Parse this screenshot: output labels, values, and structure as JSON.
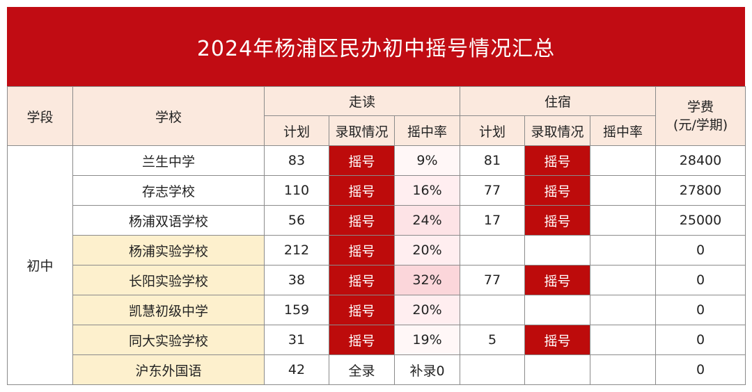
{
  "title": "2024年杨浦区民办初中摇号情况汇总",
  "colors": {
    "header_red": "#c10c13",
    "lottery_cell": "#bd0b0b",
    "header_bg": "#fbe9de",
    "highlight_school": "#fdf0cd"
  },
  "headers": {
    "stage": "学段",
    "school": "学校",
    "walk": "走读",
    "board": "住宿",
    "fee_line1": "学费",
    "fee_line2": "(元/学期)",
    "plan": "计划",
    "admission": "录取情况",
    "rate": "摇中率"
  },
  "stage_label": "初中",
  "rows": [
    {
      "school": "兰生中学",
      "walk_plan": "83",
      "walk_admission": "摇号",
      "walk_rate": "9%",
      "board_plan": "81",
      "board_admission": "摇号",
      "board_rate": "",
      "fee": "28400"
    },
    {
      "school": "存志学校",
      "walk_plan": "110",
      "walk_admission": "摇号",
      "walk_rate": "16%",
      "board_plan": "77",
      "board_admission": "摇号",
      "board_rate": "",
      "fee": "27800"
    },
    {
      "school": "杨浦双语学校",
      "walk_plan": "56",
      "walk_admission": "摇号",
      "walk_rate": "24%",
      "board_plan": "17",
      "board_admission": "摇号",
      "board_rate": "",
      "fee": "25000"
    },
    {
      "school": "杨浦实验学校",
      "walk_plan": "212",
      "walk_admission": "摇号",
      "walk_rate": "20%",
      "board_plan": "",
      "board_admission": "",
      "board_rate": "",
      "fee": "0"
    },
    {
      "school": "长阳实验学校",
      "walk_plan": "38",
      "walk_admission": "摇号",
      "walk_rate": "32%",
      "board_plan": "77",
      "board_admission": "摇号",
      "board_rate": "",
      "fee": "0"
    },
    {
      "school": "凯慧初级中学",
      "walk_plan": "159",
      "walk_admission": "摇号",
      "walk_rate": "20%",
      "board_plan": "",
      "board_admission": "",
      "board_rate": "",
      "fee": "0"
    },
    {
      "school": "同大实验学校",
      "walk_plan": "31",
      "walk_admission": "摇号",
      "walk_rate": "19%",
      "board_plan": "5",
      "board_admission": "摇号",
      "board_rate": "",
      "fee": "0"
    },
    {
      "school": "沪东外国语",
      "walk_plan": "42",
      "walk_admission": "全录",
      "walk_rate": "补录0",
      "board_plan": "",
      "board_admission": "",
      "board_rate": "",
      "fee": "0"
    }
  ]
}
